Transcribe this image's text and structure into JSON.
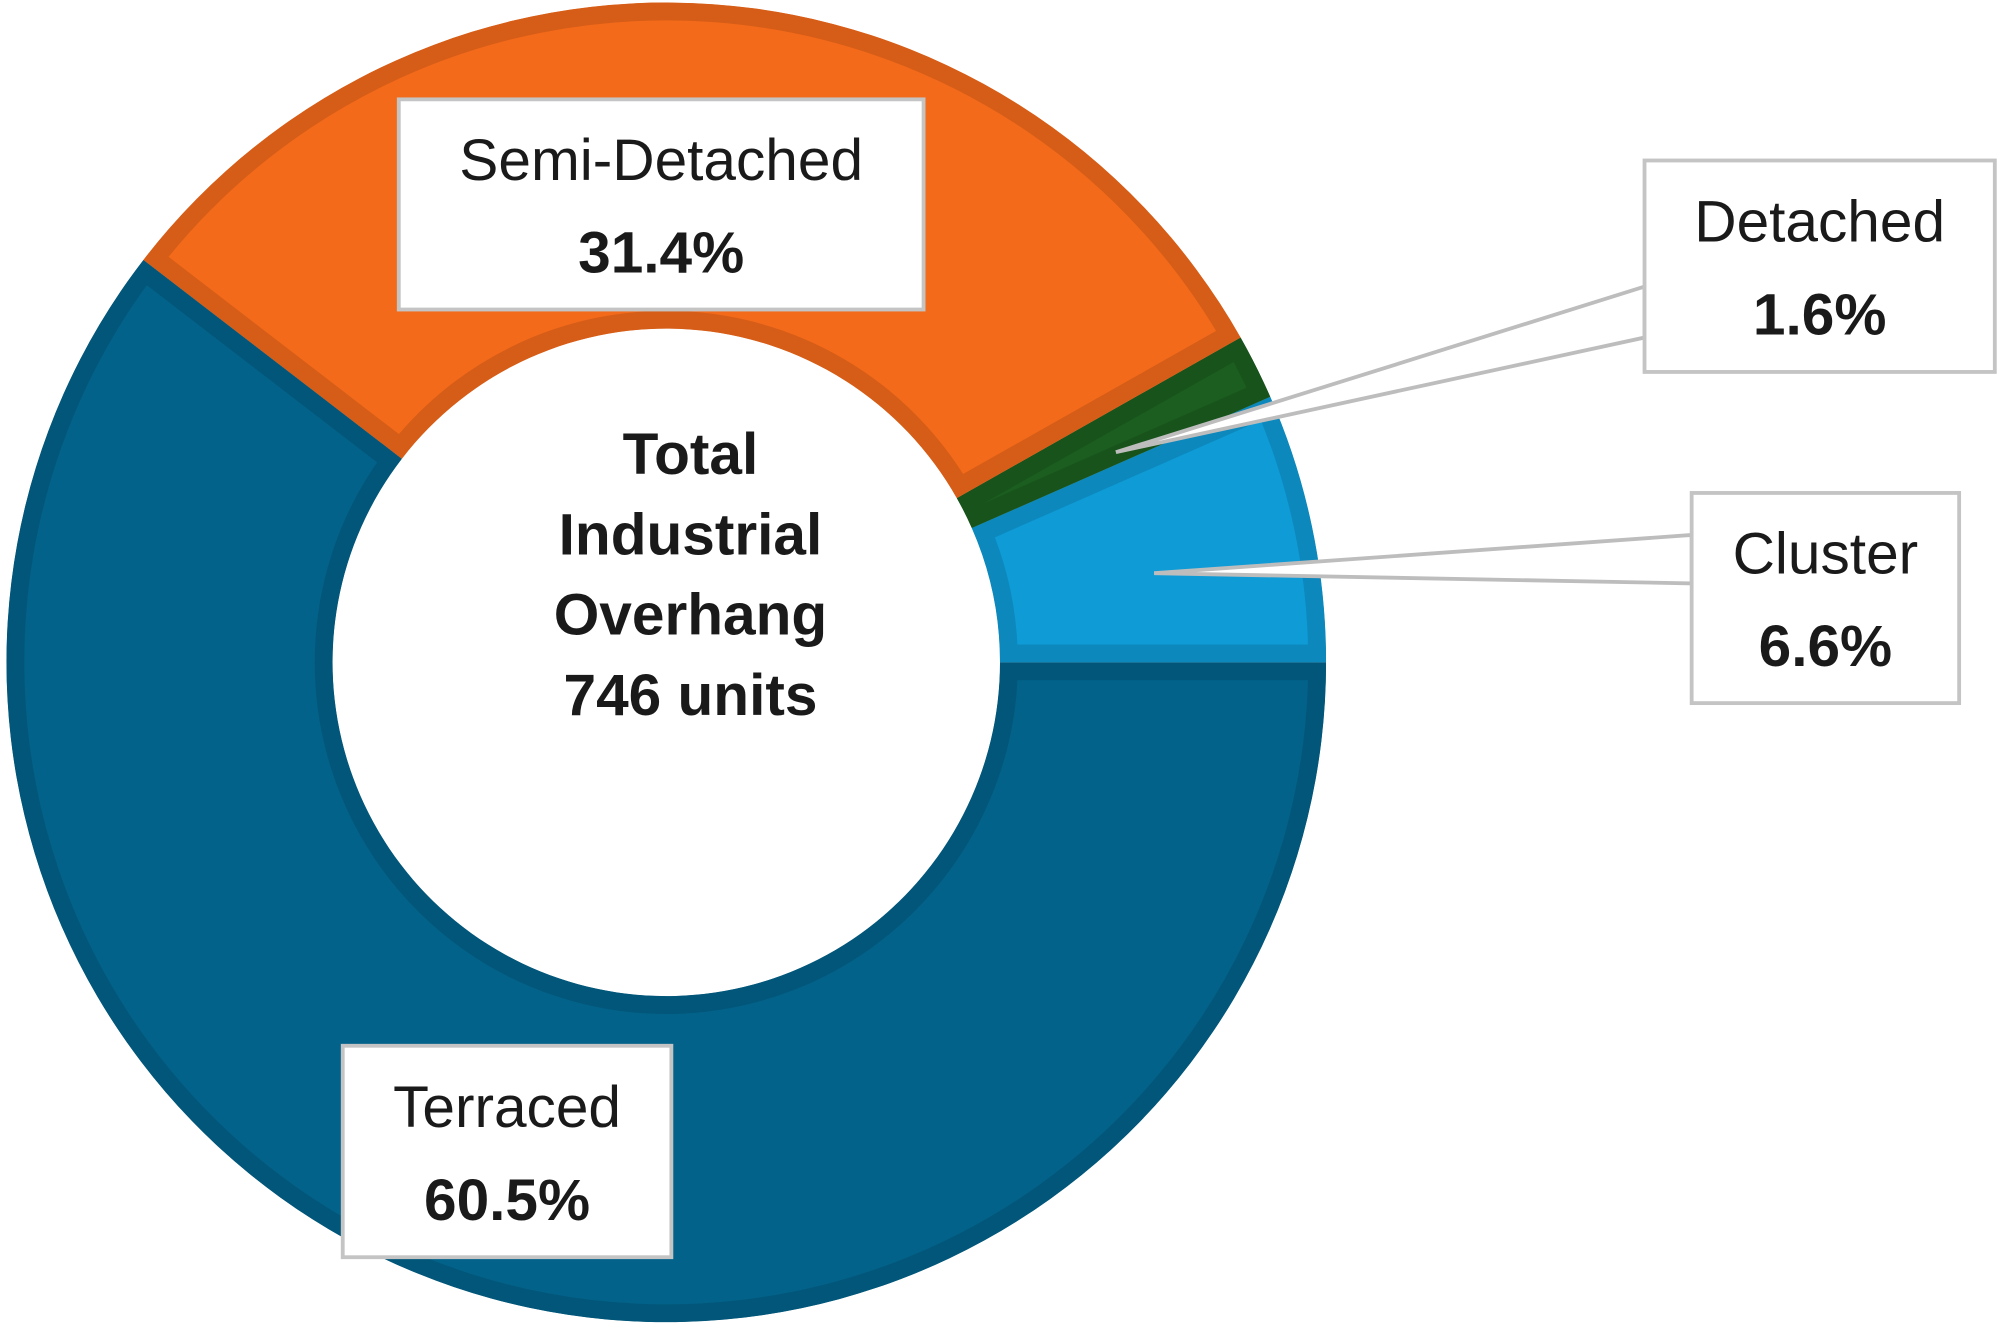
{
  "chart_data": {
    "type": "donut",
    "categories": [
      "Cluster",
      "Detached",
      "Semi-Detached",
      "Terraced"
    ],
    "values": [
      6.6,
      1.6,
      31.4,
      60.5
    ],
    "value_labels": [
      "6.6%",
      "1.6%",
      "31.4%",
      "60.5%"
    ],
    "colors": [
      "#0e9bd6",
      "#1b5e20",
      "#f36a1a",
      "#02628a"
    ],
    "center_text": [
      "Total",
      "Industrial",
      "Overhang",
      "746 units"
    ]
  }
}
